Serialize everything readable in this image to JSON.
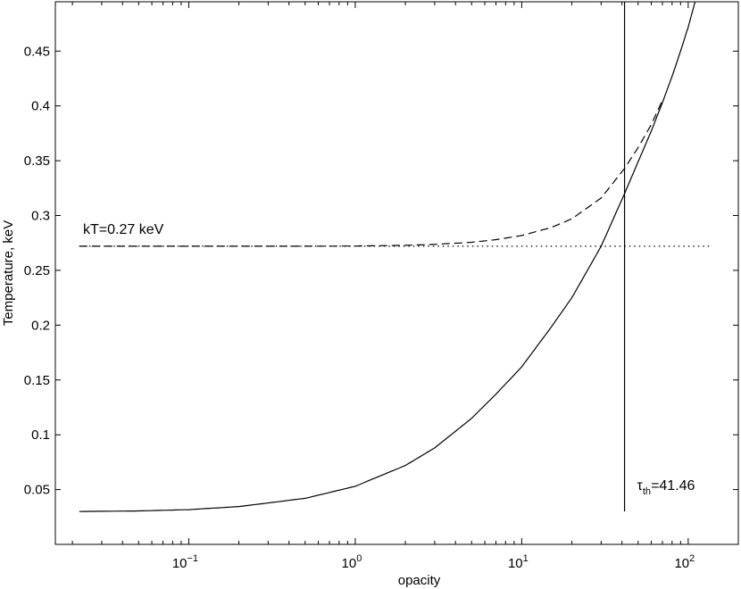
{
  "chart_data": {
    "type": "line",
    "xlabel": "opacity",
    "ylabel": "Temperature, keV",
    "x_scale": "log",
    "xlim": [
      0.0158,
      200
    ],
    "ylim": [
      0.0,
      0.495
    ],
    "grid": false,
    "x_ticks": [
      {
        "value": 0.1,
        "base": "10",
        "exp": "−1"
      },
      {
        "value": 1,
        "base": "10",
        "exp": "0"
      },
      {
        "value": 10,
        "base": "10",
        "exp": "1"
      },
      {
        "value": 100,
        "base": "10",
        "exp": "2"
      }
    ],
    "y_ticks": [
      {
        "value": 0.05,
        "label": "0.05"
      },
      {
        "value": 0.1,
        "label": "0.1"
      },
      {
        "value": 0.15,
        "label": "0.15"
      },
      {
        "value": 0.2,
        "label": "0.2"
      },
      {
        "value": 0.25,
        "label": "0.25"
      },
      {
        "value": 0.3,
        "label": "0.3"
      },
      {
        "value": 0.35,
        "label": "0.35"
      },
      {
        "value": 0.4,
        "label": "0.4"
      },
      {
        "value": 0.45,
        "label": "0.45"
      }
    ],
    "series": [
      {
        "style": "solid",
        "x": [
          0.022,
          0.05,
          0.1,
          0.2,
          0.5,
          1,
          2,
          3,
          5,
          7,
          10,
          15,
          20,
          30,
          41.46,
          50,
          60,
          70,
          80,
          90,
          100,
          110
        ],
        "y": [
          0.03,
          0.0305,
          0.0317,
          0.0345,
          0.042,
          0.053,
          0.072,
          0.088,
          0.115,
          0.137,
          0.162,
          0.198,
          0.225,
          0.272,
          0.32,
          0.349,
          0.377,
          0.403,
          0.427,
          0.45,
          0.472,
          0.495
        ]
      },
      {
        "style": "dashed",
        "x": [
          0.022,
          0.1,
          0.5,
          1,
          2,
          3,
          5,
          7,
          10,
          15,
          20,
          30,
          41.46,
          50,
          60,
          70
        ],
        "y": [
          0.272,
          0.272,
          0.272,
          0.2722,
          0.2728,
          0.2737,
          0.2756,
          0.278,
          0.2818,
          0.289,
          0.297,
          0.316,
          0.343,
          0.362,
          0.383,
          0.405
        ]
      },
      {
        "style": "dotted",
        "x": [
          0.022,
          140
        ],
        "y": [
          0.272,
          0.272
        ]
      }
    ],
    "vline": {
      "x": 41.46,
      "y_from": 0.03,
      "y_to": 0.495
    },
    "annotations": {
      "kt_text": "kT=0.27 keV",
      "tau_symbol": "τ",
      "tau_sub": "th",
      "tau_value": "=41.46"
    }
  }
}
